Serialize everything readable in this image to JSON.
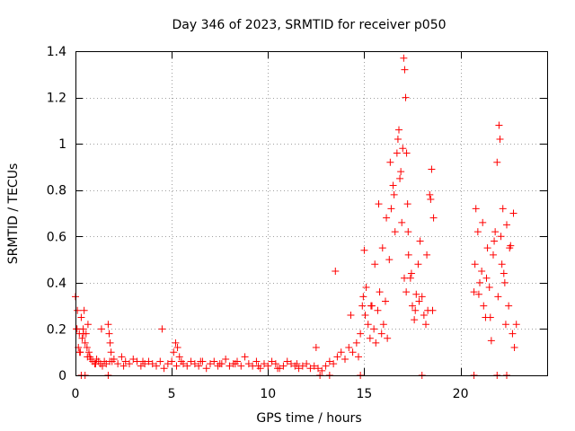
{
  "chart_data": {
    "type": "scatter",
    "title": "Day 346 of 2023, SRMTID for receiver p050",
    "xlabel": "GPS time / hours",
    "ylabel": "SRMTID / TECUs",
    "xlim": [
      0,
      24.5
    ],
    "ylim": [
      0,
      1.4
    ],
    "xticks": [
      0,
      5,
      10,
      15,
      20
    ],
    "yticks": [
      0,
      0.2,
      0.4,
      0.6,
      0.8,
      1,
      1.2,
      1.4
    ],
    "xtick_labels": [
      "0",
      "5",
      "10",
      "15",
      "20"
    ],
    "ytick_labels": [
      "0",
      "0.2",
      "0.4",
      "0.6",
      "0.8",
      "1",
      "1.2",
      "1.4"
    ],
    "grid": true,
    "marker": "+",
    "series": [
      {
        "name": "SRMTID",
        "color": "#ff0000",
        "x": [
          0.0,
          0.05,
          0.1,
          0.15,
          0.2,
          0.25,
          0.3,
          0.35,
          0.4,
          0.45,
          0.5,
          0.55,
          0.6,
          0.65,
          0.7,
          0.75,
          0.8,
          0.9,
          1.0,
          1.1,
          1.2,
          1.3,
          1.4,
          1.5,
          1.6,
          1.7,
          1.75,
          1.8,
          1.85,
          1.9,
          2.0,
          2.2,
          2.4,
          2.6,
          2.8,
          3.0,
          3.2,
          3.4,
          3.6,
          3.8,
          4.0,
          4.2,
          4.4,
          4.6,
          4.8,
          5.0,
          5.1,
          5.2,
          5.3,
          5.4,
          5.5,
          5.6,
          5.8,
          6.0,
          6.2,
          6.4,
          6.6,
          6.8,
          7.0,
          7.2,
          7.4,
          7.6,
          7.8,
          8.0,
          8.2,
          8.4,
          8.6,
          8.8,
          9.0,
          9.2,
          9.4,
          9.6,
          9.8,
          10.0,
          10.2,
          10.4,
          10.6,
          10.8,
          11.0,
          11.2,
          11.4,
          11.6,
          11.8,
          12.0,
          12.2,
          12.4,
          12.6,
          12.8,
          13.0,
          13.2,
          13.4,
          13.6,
          13.8,
          14.0,
          14.2,
          14.4,
          14.6,
          14.7,
          14.8,
          14.9,
          15.0,
          15.1,
          15.2,
          15.3,
          15.4,
          15.5,
          15.6,
          15.7,
          15.8,
          15.9,
          16.0,
          16.1,
          16.2,
          16.3,
          16.4,
          16.5,
          16.6,
          16.7,
          16.8,
          16.9,
          17.0,
          17.05,
          17.1,
          17.15,
          17.2,
          17.25,
          17.3,
          17.4,
          17.5,
          17.6,
          17.7,
          17.8,
          17.9,
          18.0,
          18.1,
          18.2,
          18.3,
          18.4,
          18.5,
          18.6,
          20.7,
          20.8,
          20.9,
          21.0,
          21.1,
          21.2,
          21.3,
          21.4,
          21.5,
          21.6,
          21.7,
          21.8,
          21.9,
          22.0,
          22.05,
          22.1,
          22.15,
          22.2,
          22.3,
          22.4,
          22.5,
          22.6,
          22.7,
          22.8,
          22.9,
          0.08,
          0.22,
          0.42,
          0.62,
          1.05,
          1.35,
          1.78,
          2.5,
          3.5,
          4.5,
          5.25,
          6.5,
          7.5,
          8.3,
          9.5,
          10.5,
          11.5,
          12.5,
          13.5,
          14.3,
          14.95,
          15.05,
          15.35,
          15.55,
          15.75,
          15.95,
          16.15,
          16.35,
          16.55,
          16.75,
          16.85,
          16.95,
          17.08,
          17.18,
          17.28,
          17.45,
          17.65,
          17.85,
          18.25,
          18.45,
          18.55,
          20.75,
          20.95,
          21.15,
          21.35,
          21.55,
          21.75,
          21.95,
          22.25,
          22.35,
          22.55,
          22.75,
          0.3,
          0.5,
          1.7,
          12.7,
          13.2,
          14.8,
          18.0,
          20.7,
          21.9,
          22.4
        ],
        "y": [
          0.34,
          0.2,
          0.28,
          0.12,
          0.18,
          0.1,
          0.25,
          0.16,
          0.2,
          0.28,
          0.14,
          0.18,
          0.12,
          0.22,
          0.1,
          0.08,
          0.07,
          0.06,
          0.05,
          0.07,
          0.06,
          0.05,
          0.04,
          0.06,
          0.05,
          0.22,
          0.18,
          0.14,
          0.1,
          0.06,
          0.07,
          0.05,
          0.08,
          0.06,
          0.05,
          0.07,
          0.06,
          0.04,
          0.05,
          0.06,
          0.05,
          0.04,
          0.06,
          0.03,
          0.05,
          0.06,
          0.1,
          0.14,
          0.12,
          0.08,
          0.06,
          0.05,
          0.04,
          0.06,
          0.05,
          0.04,
          0.06,
          0.03,
          0.05,
          0.06,
          0.04,
          0.05,
          0.07,
          0.04,
          0.05,
          0.06,
          0.04,
          0.08,
          0.05,
          0.04,
          0.06,
          0.03,
          0.05,
          0.04,
          0.06,
          0.05,
          0.03,
          0.04,
          0.06,
          0.05,
          0.04,
          0.03,
          0.04,
          0.05,
          0.03,
          0.04,
          0.03,
          0.02,
          0.04,
          0.06,
          0.05,
          0.08,
          0.1,
          0.07,
          0.12,
          0.1,
          0.14,
          0.08,
          0.18,
          0.3,
          0.54,
          0.38,
          0.22,
          0.16,
          0.3,
          0.2,
          0.14,
          0.28,
          0.36,
          0.18,
          0.22,
          0.32,
          0.16,
          0.5,
          0.72,
          0.82,
          0.62,
          0.96,
          1.06,
          0.88,
          0.98,
          1.37,
          1.32,
          1.2,
          0.96,
          0.74,
          0.52,
          0.42,
          0.3,
          0.24,
          0.35,
          0.48,
          0.58,
          0.34,
          0.26,
          0.22,
          0.28,
          0.78,
          0.89,
          0.68,
          0.36,
          0.72,
          0.62,
          0.4,
          0.45,
          0.3,
          0.25,
          0.55,
          0.38,
          0.15,
          0.52,
          0.62,
          0.92,
          1.08,
          1.02,
          0.6,
          0.48,
          0.72,
          0.4,
          0.65,
          0.3,
          0.56,
          0.18,
          0.12,
          0.22,
          0.2,
          0.1,
          0.18,
          0.08,
          0.05,
          0.2,
          0.06,
          0.04,
          0.06,
          0.2,
          0.04,
          0.06,
          0.05,
          0.05,
          0.04,
          0.03,
          0.05,
          0.12,
          0.45,
          0.26,
          0.34,
          0.26,
          0.3,
          0.48,
          0.74,
          0.55,
          0.68,
          0.92,
          0.78,
          1.02,
          0.85,
          0.66,
          0.42,
          0.36,
          0.62,
          0.44,
          0.28,
          0.32,
          0.52,
          0.76,
          0.28,
          0.48,
          0.35,
          0.66,
          0.42,
          0.25,
          0.58,
          0.34,
          0.44,
          0.22,
          0.55,
          0.7,
          0.0,
          0.0,
          0.0,
          0.0,
          0.0,
          0.0,
          0.0,
          0.0,
          0.0,
          0.0
        ]
      }
    ]
  }
}
